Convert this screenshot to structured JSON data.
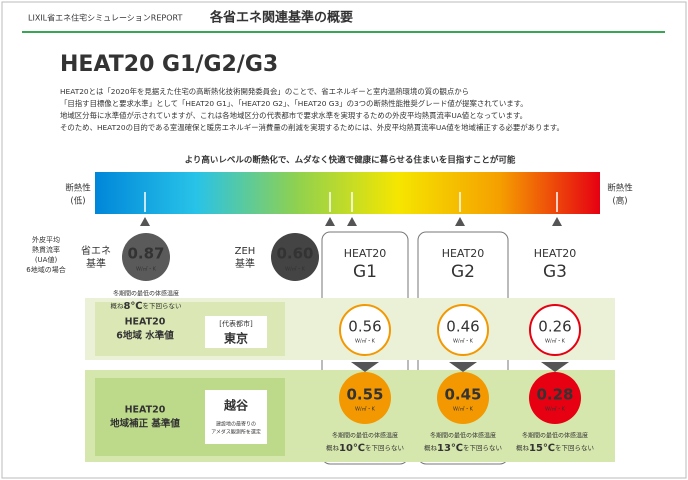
{
  "header": {
    "report": "LIXIL省エネ住宅シミュレーションREPORT",
    "title": "各省エネ関連基準の概要"
  },
  "heading": "HEAT20 G1/G2/G3",
  "intro": [
    "HEAT20とは「2020年を見据えた住宅の高断熱化技術開発委員会」のことで、省エネルギーと室内温熱環境の質の観点から",
    "「目指す目標像と要求水準」として「HEAT20 G1」、「HEAT20 G2」、「HEAT20 G3」の3つの断熱性能推奨グレード値が提案されています。",
    "地域区分毎に水準値が示されていますが、これは各地域区分の代表都市で要求水準を実現するための外皮平均熱貫流率UA値となっています。",
    "そのため、HEAT20の目的である室温確保と暖房エネルギー消費量の削減を実現するためには、外皮平均熱貫流率UA値を地域補正する必要があります。"
  ],
  "scale": {
    "caption": "より高いレベルの断熱化で、ムダなく快適で健康に暮らせる住まいを目指すことが可能",
    "low": [
      "断熱性",
      "(低)"
    ],
    "high": [
      "断熱性",
      "(高)"
    ]
  },
  "side_label": [
    "外皮平均",
    "熱貫流率",
    "(UA値)",
    "6地域の場合"
  ],
  "unit": "W/㎡・K",
  "standards": [
    {
      "label": [
        "省エネ",
        "基準"
      ],
      "value": "0.87"
    },
    {
      "label": [
        "ZEH",
        "基準"
      ],
      "value": "0.60"
    }
  ],
  "standards_note": {
    "line1": "冬期間の最低の体感温度",
    "pre": "概ね",
    "temp": "8℃",
    "post": "を下回らない"
  },
  "grades": [
    {
      "name": "HEAT20",
      "grade": "G1",
      "color": "#f39800"
    },
    {
      "name": "HEAT20",
      "grade": "G2",
      "color": "#f39800"
    },
    {
      "name": "HEAT20",
      "grade": "G3",
      "color": "#e60012"
    }
  ],
  "rows": [
    {
      "label": [
        "HEAT20",
        "6地域 水準値"
      ],
      "city_tag": "[代表都市]",
      "city": "東京",
      "values": [
        "0.56",
        "0.46",
        "0.26"
      ]
    },
    {
      "label": [
        "HEAT20",
        "地域補正 基準値"
      ],
      "city": "越谷",
      "city_note": [
        "建設地の最寄りの",
        "アメダス観測所を選定"
      ],
      "values": [
        "0.55",
        "0.45",
        "0.28"
      ],
      "notes": [
        {
          "line1": "冬期間の最低の体感温度",
          "pre": "概ね",
          "temp": "10℃",
          "post": "を下回らない"
        },
        {
          "line1": "冬期間の最低の体感温度",
          "pre": "概ね",
          "temp": "13℃",
          "post": "を下回らない"
        },
        {
          "line1": "冬期間の最低の体感温度",
          "pre": "概ね",
          "temp": "15℃",
          "post": "を下回らない"
        }
      ]
    }
  ]
}
